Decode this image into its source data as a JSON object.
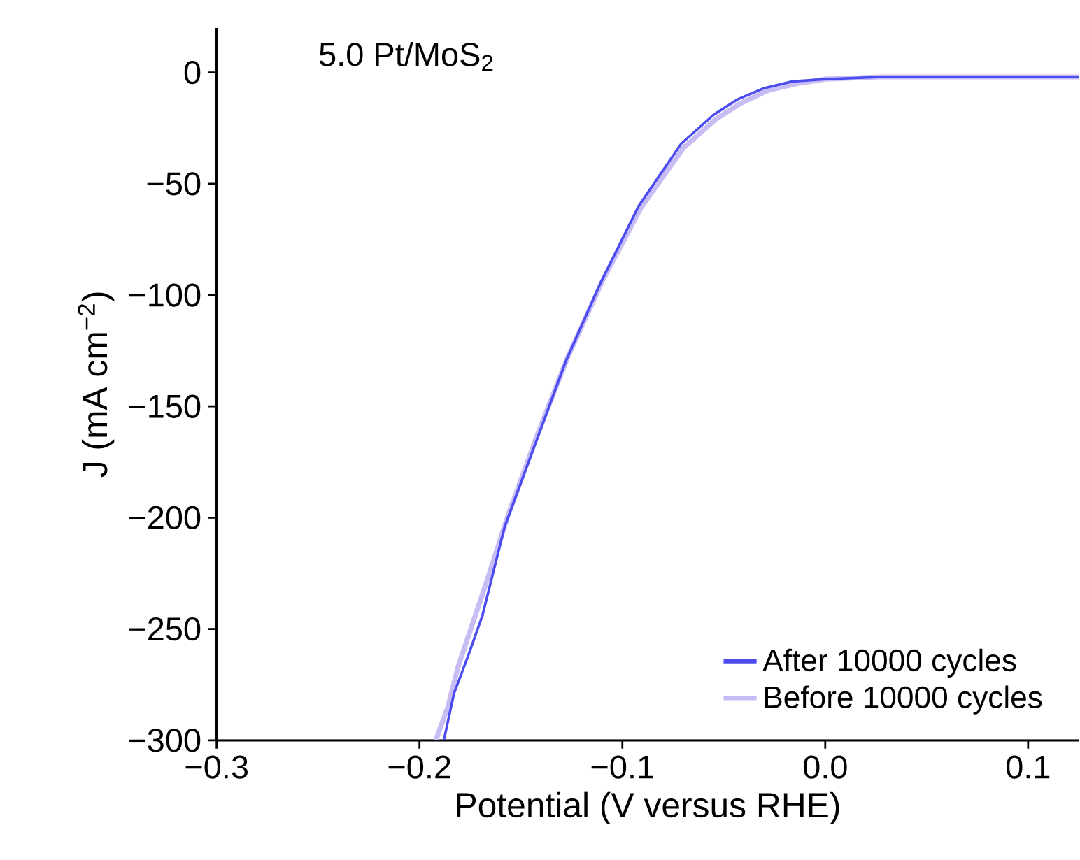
{
  "chart_data": {
    "type": "line",
    "xlabel": "Potential (V versus RHE)",
    "ylabel": "J (mA cm$^{−2}$)",
    "annotations": [
      "5.0 Pt/MoS$_{2}$"
    ],
    "xlim": [
      -0.3,
      0.125
    ],
    "ylim": [
      -300,
      20
    ],
    "xticks": [
      {
        "value": -0.3,
        "label": "−0.3"
      },
      {
        "value": -0.2,
        "label": "−0.2"
      },
      {
        "value": -0.1,
        "label": "−0.1"
      },
      {
        "value": 0.0,
        "label": "0.0"
      },
      {
        "value": 0.1,
        "label": "0.1"
      }
    ],
    "yticks": [
      {
        "value": -300,
        "label": "−300"
      },
      {
        "value": -250,
        "label": "−250"
      },
      {
        "value": -200,
        "label": "−200"
      },
      {
        "value": -150,
        "label": "−150"
      },
      {
        "value": -100,
        "label": "−100"
      },
      {
        "value": -50,
        "label": "−50"
      },
      {
        "value": 0,
        "label": "0"
      }
    ],
    "legend": "bottom right",
    "marker": "none",
    "line_style": "solid",
    "series": [
      {
        "name": "After 10000 cycles",
        "color": "#4b4bf0",
        "x": [
          -0.188,
          -0.183,
          -0.176,
          -0.169,
          -0.158,
          -0.143,
          -0.128,
          -0.111,
          -0.092,
          -0.071,
          -0.055,
          -0.043,
          -0.03,
          -0.016,
          0.0,
          0.027,
          0.07,
          0.125
        ],
        "values": [
          -300,
          -279,
          -262,
          -244,
          -204,
          -167,
          -130,
          -95,
          -60,
          -32,
          -19,
          -12,
          -7,
          -4,
          -3,
          -2,
          -2,
          -2
        ]
      },
      {
        "name": "Before 10000 cycles",
        "color": "#c8bcf5",
        "x": [
          -0.192,
          -0.186,
          -0.181,
          -0.174,
          -0.167,
          -0.156,
          -0.142,
          -0.127,
          -0.11,
          -0.091,
          -0.07,
          -0.054,
          -0.042,
          -0.028,
          -0.014,
          0.0,
          0.027,
          0.07,
          0.125
        ],
        "values": [
          -300,
          -285,
          -267,
          -248,
          -229,
          -198,
          -163,
          -128,
          -94,
          -61,
          -34,
          -21,
          -14,
          -8,
          -5,
          -3,
          -2,
          -2,
          -2
        ]
      }
    ]
  }
}
